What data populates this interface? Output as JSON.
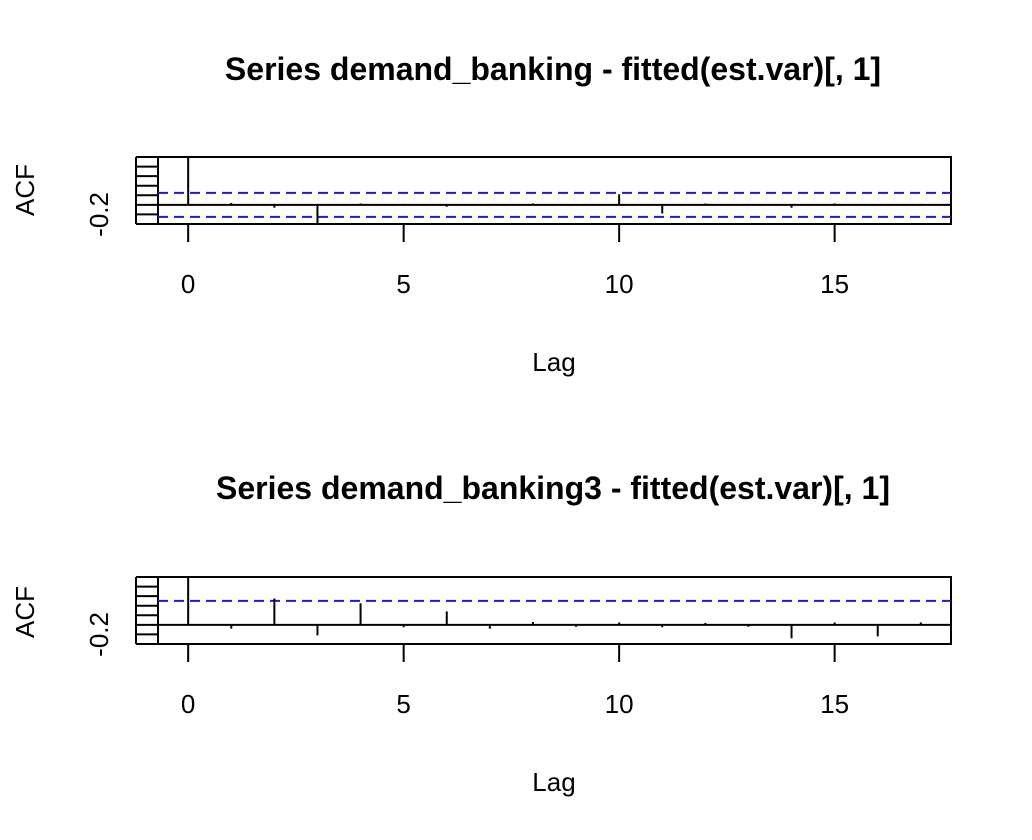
{
  "chart_data": [
    {
      "type": "bar",
      "title": "Series  demand_banking - fitted(est.var)[, 1]",
      "xlabel": "Lag",
      "ylabel": "ACF",
      "xlim": [
        -0.7,
        17.7
      ],
      "ylim": [
        -0.4,
        1.0
      ],
      "x_ticks": [
        0,
        5,
        10,
        15
      ],
      "x_tick_labels": [
        "0",
        "5",
        "10",
        "15"
      ],
      "y_tick_labels": [
        "-0.2"
      ],
      "ci": [
        0.25,
        -0.25
      ],
      "lags": [
        0,
        1,
        2,
        3,
        4,
        5,
        6,
        7,
        8,
        9,
        10,
        11,
        12,
        13,
        14,
        15,
        16,
        17
      ],
      "values": [
        1.0,
        0.04,
        -0.06,
        -0.38,
        0.03,
        0.02,
        -0.04,
        0.02,
        0.03,
        -0.02,
        0.22,
        -0.18,
        0.03,
        0.02,
        -0.06,
        0.03,
        -0.02,
        0.02
      ]
    },
    {
      "type": "bar",
      "title": "Series  demand_banking3 - fitted(est.var)[, 1]",
      "xlabel": "Lag",
      "ylabel": "ACF",
      "xlim": [
        -0.7,
        17.7
      ],
      "ylim": [
        -0.4,
        1.0
      ],
      "x_ticks": [
        0,
        5,
        10,
        15
      ],
      "x_tick_labels": [
        "0",
        "5",
        "10",
        "15"
      ],
      "y_tick_labels": [
        "-0.2"
      ],
      "ci": [
        0.5,
        -0.5
      ],
      "lags": [
        0,
        1,
        2,
        3,
        4,
        5,
        6,
        7,
        8,
        9,
        10,
        11,
        12,
        13,
        14,
        15,
        16,
        17
      ],
      "values": [
        1.0,
        -0.08,
        0.55,
        -0.22,
        0.45,
        -0.05,
        0.28,
        -0.08,
        0.06,
        -0.04,
        0.05,
        -0.05,
        0.04,
        -0.04,
        -0.28,
        0.05,
        -0.24,
        0.05
      ]
    }
  ]
}
